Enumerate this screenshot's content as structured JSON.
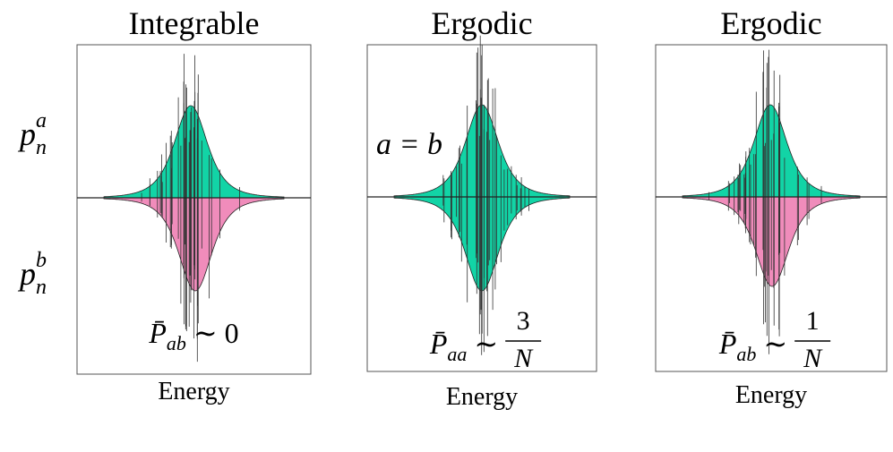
{
  "row_labels": [
    {
      "base": "p",
      "sub": "n",
      "sup": "a"
    },
    {
      "base": "p",
      "sub": "n",
      "sup": "b"
    }
  ],
  "panels": [
    {
      "title": "Integrable",
      "formula": {
        "symbol": "P̄",
        "sub": "ab",
        "relation": "∼",
        "value": "0"
      },
      "xlabel": "Energy"
    },
    {
      "title": "Ergodic",
      "annotation": "a = b",
      "formula": {
        "symbol": "P̄",
        "sub": "aa",
        "relation": "∼",
        "numerator": "3",
        "denominator": "N"
      },
      "xlabel": "Energy"
    },
    {
      "title": "Ergodic",
      "formula": {
        "symbol": "P̄",
        "sub": "ab",
        "relation": "∼",
        "numerator": "1",
        "denominator": "N"
      },
      "xlabel": "Energy"
    }
  ]
}
